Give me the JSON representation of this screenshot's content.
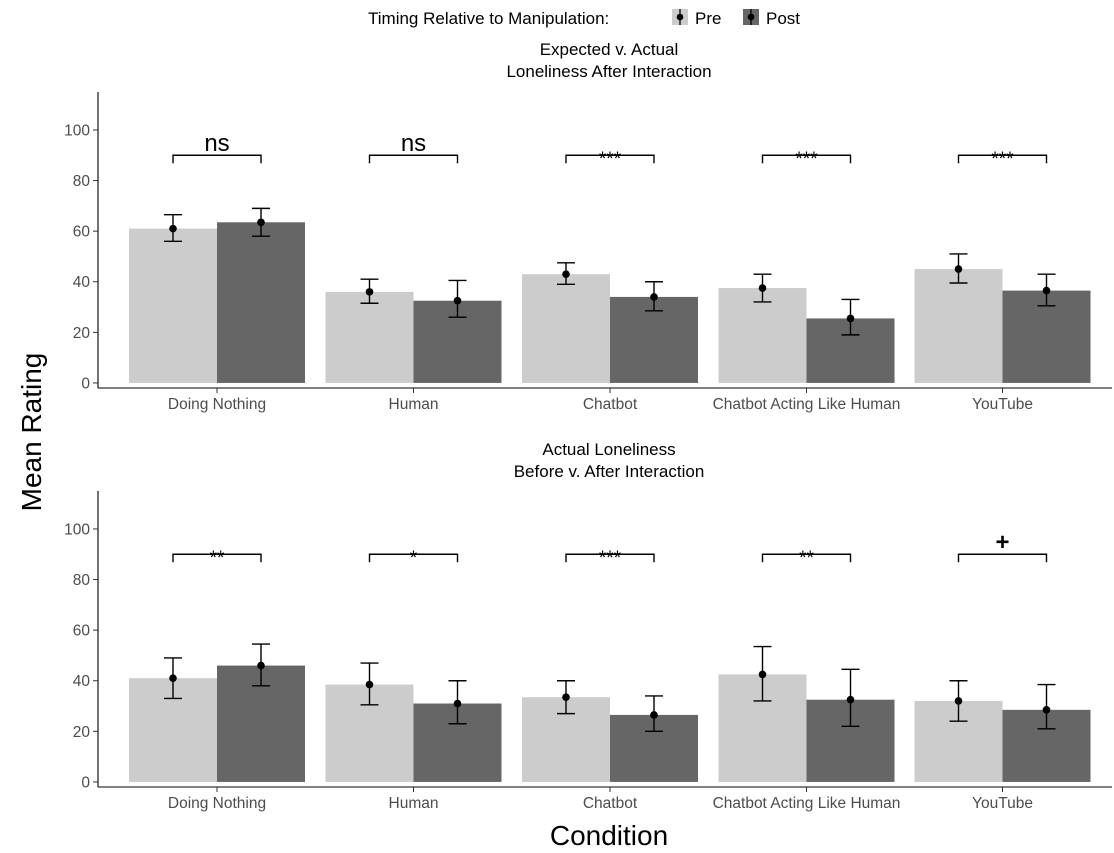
{
  "legend": {
    "title": "Timing Relative to Manipulation:",
    "placement": "top-center",
    "entries": [
      {
        "label": "Pre",
        "color": "#cccccc"
      },
      {
        "label": "Post",
        "color": "#666666"
      }
    ]
  },
  "ylabel": "Mean Rating",
  "xlabel": "Condition",
  "chart_data": [
    {
      "type": "bar",
      "title": "Expected v. Actual",
      "subtitle": "Loneliness After Interaction",
      "categories": [
        "Doing Nothing",
        "Human",
        "Chatbot",
        "Chatbot Acting Like Human",
        "YouTube"
      ],
      "ylim": [
        -2,
        115
      ],
      "yticks": [
        0,
        20,
        40,
        60,
        80,
        100
      ],
      "grid": false,
      "series": [
        {
          "name": "Pre",
          "color": "#cccccc",
          "values": [
            61,
            36,
            43,
            37.5,
            45
          ],
          "error_low": [
            56,
            31.5,
            39,
            32,
            39.5
          ],
          "error_high": [
            66.5,
            41,
            47.5,
            43,
            51
          ]
        },
        {
          "name": "Post",
          "color": "#666666",
          "values": [
            63.5,
            32.5,
            34,
            25.5,
            36.5
          ],
          "error_low": [
            58,
            26,
            28.5,
            19,
            30.5
          ],
          "error_high": [
            69,
            40.5,
            40,
            33,
            43
          ]
        }
      ],
      "significance": [
        "ns",
        "ns",
        "***",
        "***",
        "***"
      ],
      "bracket_y": 90
    },
    {
      "type": "bar",
      "title": "Actual Loneliness",
      "subtitle": "Before v. After Interaction",
      "categories": [
        "Doing Nothing",
        "Human",
        "Chatbot",
        "Chatbot Acting Like Human",
        "YouTube"
      ],
      "ylim": [
        -2,
        115
      ],
      "yticks": [
        0,
        20,
        40,
        60,
        80,
        100
      ],
      "grid": false,
      "series": [
        {
          "name": "Pre",
          "color": "#cccccc",
          "values": [
            41,
            38.5,
            33.5,
            42.5,
            32
          ],
          "error_low": [
            33,
            30.5,
            27,
            32,
            24
          ],
          "error_high": [
            49,
            47,
            40,
            53.5,
            40
          ]
        },
        {
          "name": "Post",
          "color": "#666666",
          "values": [
            46,
            31,
            26.5,
            32.5,
            28.5
          ],
          "error_low": [
            38,
            23,
            20,
            22,
            21
          ],
          "error_high": [
            54.5,
            40,
            34,
            44.5,
            38.5
          ]
        }
      ],
      "significance": [
        "**",
        "*",
        "***",
        "**",
        "+"
      ],
      "bracket_y": 90
    }
  ]
}
